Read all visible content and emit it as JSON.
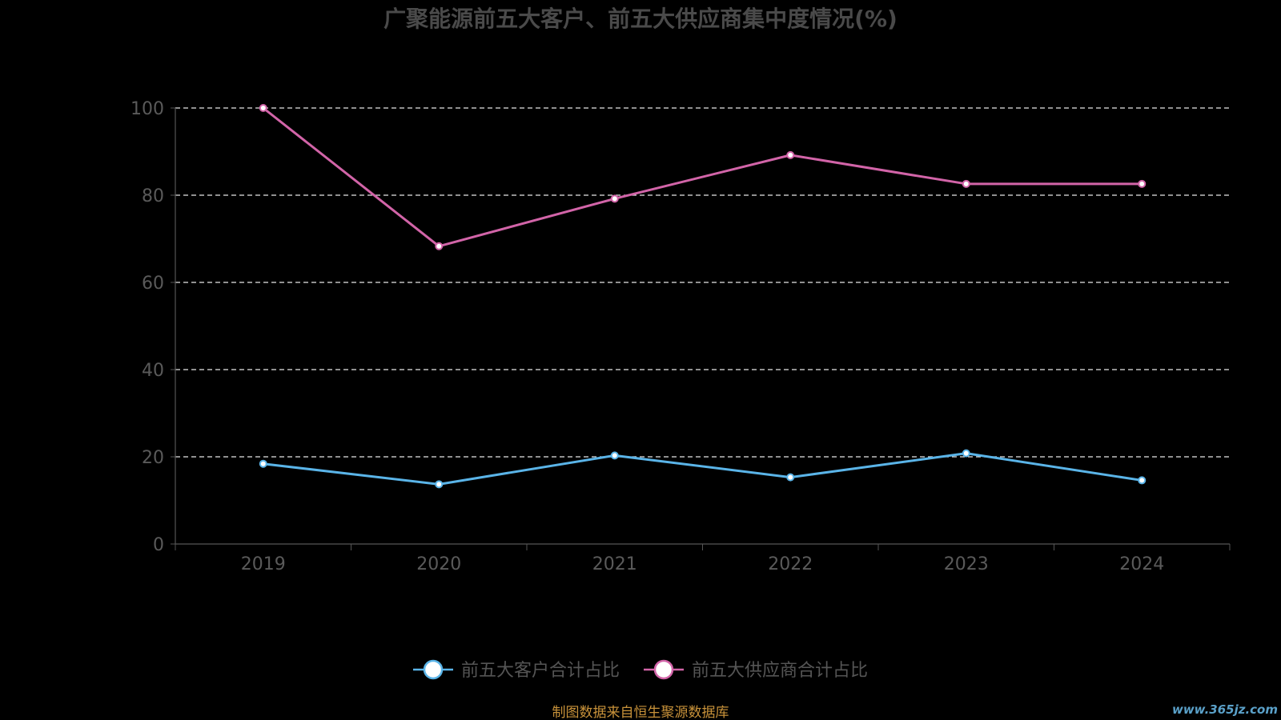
{
  "chart_data": {
    "type": "line",
    "title": "广聚能源前五大客户、前五大供应商集中度情况(%)",
    "categories": [
      "2019",
      "2020",
      "2021",
      "2022",
      "2023",
      "2024"
    ],
    "ylim": [
      0,
      100
    ],
    "yticks": [
      0,
      20,
      40,
      60,
      80,
      100
    ],
    "grid": true,
    "legend_position": "bottom-center",
    "series": [
      {
        "name": "前五大客户合计占比",
        "color": "#5ab4e8",
        "values": [
          18.4,
          13.7,
          20.3,
          15.3,
          20.8,
          14.6
        ]
      },
      {
        "name": "前五大供应商合计占比",
        "color": "#d264a8",
        "values": [
          100.0,
          68.3,
          79.2,
          89.2,
          82.6,
          82.6
        ]
      }
    ]
  },
  "footer": {
    "source": "制图数据来自恒生聚源数据库"
  },
  "watermark": {
    "text": "www.365jz.com"
  }
}
